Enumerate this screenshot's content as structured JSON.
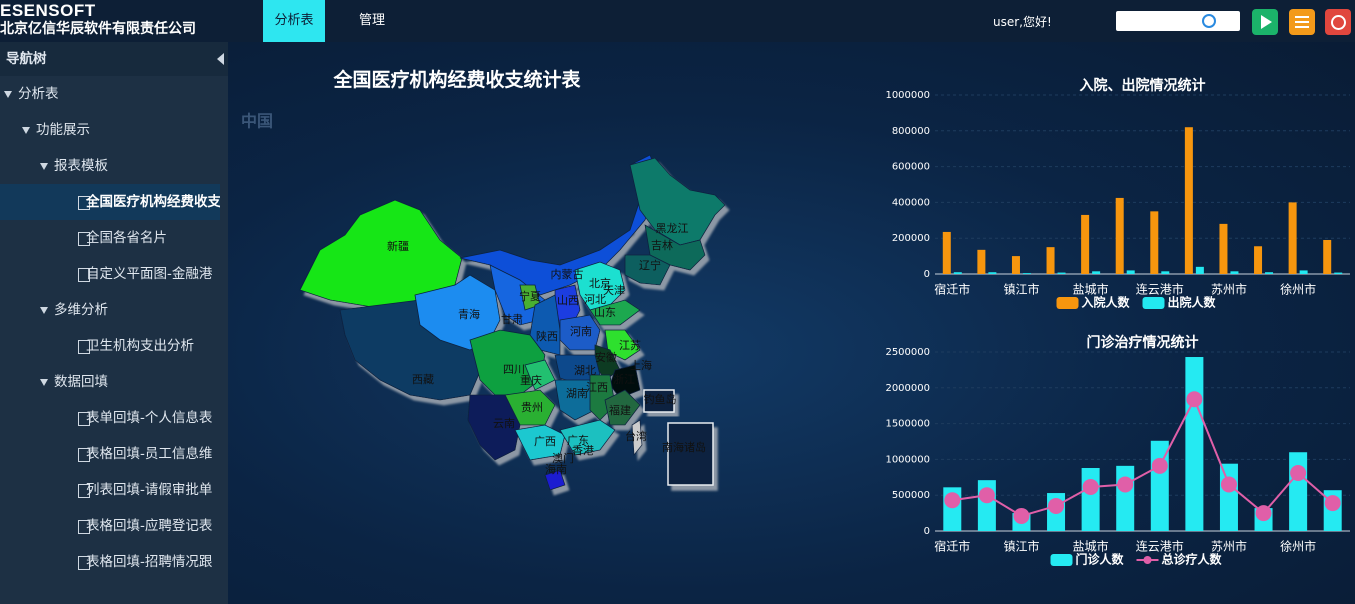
{
  "header": {
    "logo": "ESENSOFT",
    "company": "北京亿信华辰软件有限责任公司",
    "tabs": [
      "分析表",
      "管理"
    ],
    "user": "user,您好!"
  },
  "sidebar": {
    "title": "导航树",
    "items": [
      "分析表",
      "功能展示",
      "报表模板",
      "全国医疗机构经费收支",
      "全国各省名片",
      "自定义平面图-金融港",
      "多维分析",
      "卫生机构支出分析",
      "数据回填",
      "表单回填-个人信息表",
      "表格回填-员工信息维",
      "列表回填-请假审批单",
      "表格回填-应聘登记表",
      "表格回填-招聘情况跟"
    ]
  },
  "map": {
    "title": "全国医疗机构经费收支统计表",
    "region": "中国",
    "labels": [
      "新疆",
      "西藏",
      "青海",
      "甘肃",
      "内蒙古",
      "宁夏",
      "山西",
      "河北",
      "北京",
      "天津",
      "辽宁",
      "吉林",
      "黑龙江",
      "山东",
      "陕西",
      "河南",
      "江苏",
      "安徽",
      "上海",
      "浙江",
      "四川",
      "重庆",
      "湖北",
      "湖南",
      "江西",
      "贵州",
      "云南",
      "广西",
      "广东",
      "福建",
      "台湾",
      "香港",
      "澳门",
      "海南",
      "南海诸岛",
      "钓鱼岛"
    ]
  },
  "chart_data": [
    {
      "type": "bar",
      "title": "入院、出院情况统计",
      "categories": [
        "宿迁市",
        null,
        "镇江市",
        null,
        "盐城市",
        null,
        "连云港市",
        null,
        "苏州市",
        null,
        "徐州市",
        null
      ],
      "series": [
        {
          "name": "入院人数",
          "color": "#f7960e",
          "values": [
            235000,
            135000,
            100000,
            150000,
            330000,
            425000,
            350000,
            820000,
            280000,
            155000,
            400000,
            190000
          ]
        },
        {
          "name": "出院人数",
          "color": "#23e8f0",
          "values": [
            10000,
            10000,
            5000,
            8000,
            15000,
            20000,
            15000,
            40000,
            15000,
            10000,
            20000,
            8000
          ]
        }
      ],
      "ylim": [
        0,
        1000000
      ],
      "yticks": [
        0,
        200000,
        400000,
        600000,
        800000,
        1000000
      ],
      "grid": true
    },
    {
      "type": "bar",
      "title": "门诊治疗情况统计",
      "categories": [
        "宿迁市",
        null,
        "镇江市",
        null,
        "盐城市",
        null,
        "连云港市",
        null,
        "苏州市",
        null,
        "徐州市",
        null
      ],
      "series": [
        {
          "name": "门诊人数",
          "color": "#25eaf2",
          "values": [
            610000,
            710000,
            250000,
            530000,
            880000,
            910000,
            1260000,
            2430000,
            940000,
            320000,
            1100000,
            570000
          ]
        },
        {
          "name": "总诊疗人数",
          "color": "#e05fa8",
          "type": "line",
          "values": [
            430000,
            500000,
            210000,
            350000,
            615000,
            650000,
            910000,
            1840000,
            650000,
            250000,
            810000,
            390000
          ]
        }
      ],
      "ylim": [
        0,
        2500000
      ],
      "yticks": [
        0,
        500000,
        1000000,
        1500000,
        2000000,
        2500000
      ],
      "grid": true
    }
  ]
}
